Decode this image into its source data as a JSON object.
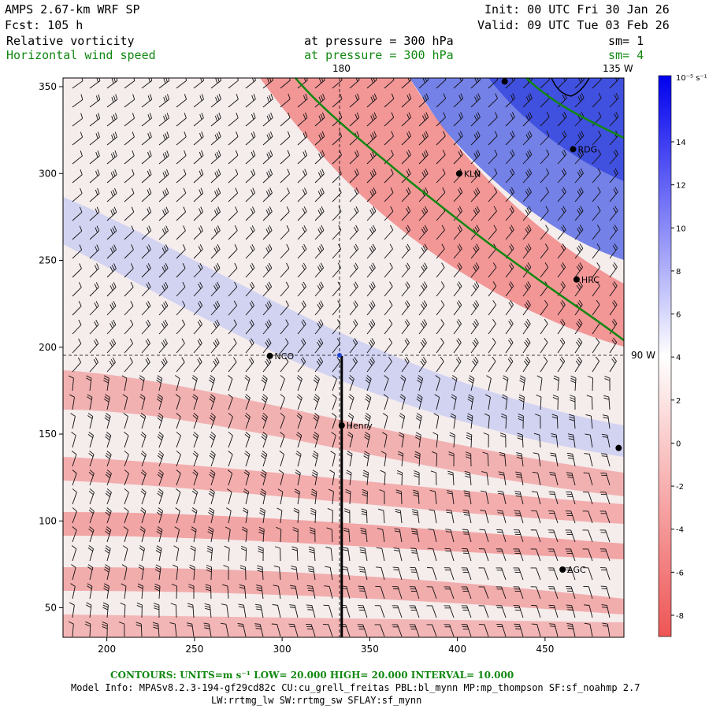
{
  "header": {
    "model_title": "AMPS 2.67-km WRF SP",
    "forecast": "Fcst:  105 h",
    "init": "Init: 00 UTC Fri 30 Jan 26",
    "valid": "Valid: 09 UTC Tue 03 Feb 26",
    "field1_name": "Relative vorticity",
    "field1_level": "at pressure =  300 hPa",
    "field1_smooth": "sm= 1",
    "field2_name": "Horizontal wind speed",
    "field2_level": "at pressure =  300 hPa",
    "field2_smooth": "sm= 4"
  },
  "map": {
    "meridian_labels": [
      "180",
      "135 W",
      "90 W"
    ],
    "x_ticks": [
      200,
      250,
      300,
      350,
      400,
      450
    ],
    "y_ticks": [
      50,
      100,
      150,
      200,
      250,
      300,
      350
    ],
    "x_range": [
      175,
      495
    ],
    "y_range": [
      33,
      355
    ],
    "stations": [
      {
        "name": "NCO",
        "x": 293,
        "y": 195
      },
      {
        "name": "Henry",
        "x": 334,
        "y": 155
      },
      {
        "name": "KLN",
        "x": 401,
        "y": 300
      },
      {
        "name": "RDG",
        "x": 466,
        "y": 314
      },
      {
        "name": "HRC",
        "x": 468,
        "y": 239
      },
      {
        "name": "AGC",
        "x": 460,
        "y": 72
      },
      {
        "name": "",
        "x": 427,
        "y": 353
      },
      {
        "name": "",
        "x": 492,
        "y": 142
      }
    ],
    "cross_section": {
      "x": 334,
      "y_top": 195,
      "y_bottom": 33
    },
    "colors": {
      "positive_vorticity": "#3344dd",
      "negative_vorticity": "#ee5555",
      "contour": "#118811",
      "coast": "#000000"
    }
  },
  "colorbar": {
    "unit_label": "10⁻⁵ s⁻¹",
    "tick_labels": [
      "14",
      "12",
      "10",
      "8",
      "6",
      "4",
      "2",
      "0",
      "-2",
      "-4",
      "-6",
      "-8"
    ],
    "max_color": "#0000ee",
    "min_color": "#ee5555"
  },
  "footer": {
    "contours": "CONTOURS:  UNITS=m s⁻¹  LOW=  20.000      HIGH=  20.000      INTERVAL=   10.000",
    "model_info": "Model Info: MPASv8.2.3-194-gf29cd82c CU:cu_grell_freitas PBL:bl_mynn MP:mp_thompson SF:sf_noahmp 2.7",
    "model_info2": "LW:rrtmg_lw SW:rrtmg_sw SFLAY:sf_mynn"
  }
}
